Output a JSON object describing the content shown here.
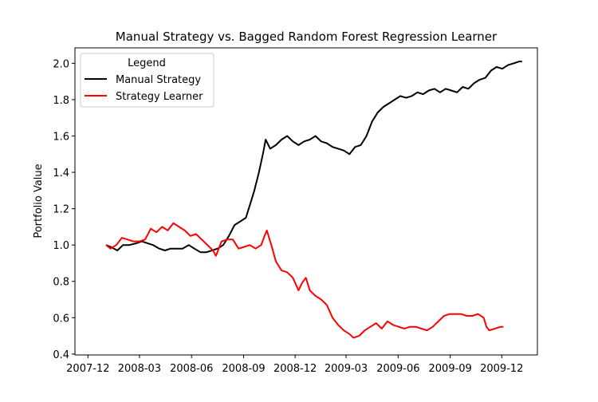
{
  "chart_data": {
    "type": "line",
    "title": "Manual Strategy vs. Bagged Random Forest Regression Learner",
    "xlabel": "",
    "ylabel": "Portfolio Value",
    "xlim": [
      "2007-11-08",
      "2010-02-02"
    ],
    "ylim": [
      0.395,
      2.085
    ],
    "x_ticks": [
      "2007-12",
      "2008-03",
      "2008-06",
      "2008-09",
      "2008-12",
      "2009-03",
      "2009-06",
      "2009-09",
      "2009-12"
    ],
    "y_ticks": [
      "0.4",
      "0.6",
      "0.8",
      "1.0",
      "1.2",
      "1.4",
      "1.6",
      "1.8",
      "2.0"
    ],
    "grid": false,
    "legend": {
      "title": "Legend",
      "position": "top-left"
    },
    "series": [
      {
        "name": "Manual Strategy",
        "color": "#000000",
        "points": [
          [
            "2008-01-02",
            1.0
          ],
          [
            "2008-01-10",
            0.99
          ],
          [
            "2008-01-22",
            0.97
          ],
          [
            "2008-02-01",
            1.0
          ],
          [
            "2008-02-12",
            1.0
          ],
          [
            "2008-02-25",
            1.01
          ],
          [
            "2008-03-05",
            1.02
          ],
          [
            "2008-03-15",
            1.01
          ],
          [
            "2008-03-25",
            1.0
          ],
          [
            "2008-04-05",
            0.98
          ],
          [
            "2008-04-15",
            0.97
          ],
          [
            "2008-04-25",
            0.98
          ],
          [
            "2008-05-06",
            0.98
          ],
          [
            "2008-05-16",
            0.98
          ],
          [
            "2008-05-27",
            1.0
          ],
          [
            "2008-06-06",
            0.98
          ],
          [
            "2008-06-17",
            0.96
          ],
          [
            "2008-06-27",
            0.96
          ],
          [
            "2008-07-07",
            0.97
          ],
          [
            "2008-07-17",
            0.98
          ],
          [
            "2008-07-27",
            1.0
          ],
          [
            "2008-08-06",
            1.05
          ],
          [
            "2008-08-16",
            1.11
          ],
          [
            "2008-08-26",
            1.13
          ],
          [
            "2008-09-05",
            1.15
          ],
          [
            "2008-09-12",
            1.22
          ],
          [
            "2008-09-20",
            1.3
          ],
          [
            "2008-09-28",
            1.4
          ],
          [
            "2008-10-05",
            1.5
          ],
          [
            "2008-10-10",
            1.58
          ],
          [
            "2008-10-18",
            1.53
          ],
          [
            "2008-10-28",
            1.55
          ],
          [
            "2008-11-07",
            1.58
          ],
          [
            "2008-11-17",
            1.6
          ],
          [
            "2008-11-27",
            1.57
          ],
          [
            "2008-12-07",
            1.55
          ],
          [
            "2008-12-17",
            1.57
          ],
          [
            "2008-12-27",
            1.58
          ],
          [
            "2009-01-06",
            1.6
          ],
          [
            "2009-01-16",
            1.57
          ],
          [
            "2009-01-26",
            1.56
          ],
          [
            "2009-02-05",
            1.54
          ],
          [
            "2009-02-15",
            1.53
          ],
          [
            "2009-02-25",
            1.52
          ],
          [
            "2009-03-07",
            1.5
          ],
          [
            "2009-03-17",
            1.54
          ],
          [
            "2009-03-27",
            1.55
          ],
          [
            "2009-04-06",
            1.6
          ],
          [
            "2009-04-16",
            1.68
          ],
          [
            "2009-04-26",
            1.73
          ],
          [
            "2009-05-06",
            1.76
          ],
          [
            "2009-05-16",
            1.78
          ],
          [
            "2009-05-26",
            1.8
          ],
          [
            "2009-06-05",
            1.82
          ],
          [
            "2009-06-15",
            1.81
          ],
          [
            "2009-06-25",
            1.82
          ],
          [
            "2009-07-05",
            1.84
          ],
          [
            "2009-07-15",
            1.83
          ],
          [
            "2009-07-25",
            1.85
          ],
          [
            "2009-08-04",
            1.86
          ],
          [
            "2009-08-14",
            1.84
          ],
          [
            "2009-08-24",
            1.86
          ],
          [
            "2009-09-03",
            1.85
          ],
          [
            "2009-09-13",
            1.84
          ],
          [
            "2009-09-23",
            1.87
          ],
          [
            "2009-10-03",
            1.86
          ],
          [
            "2009-10-13",
            1.89
          ],
          [
            "2009-10-23",
            1.91
          ],
          [
            "2009-11-02",
            1.92
          ],
          [
            "2009-11-12",
            1.96
          ],
          [
            "2009-11-22",
            1.98
          ],
          [
            "2009-12-02",
            1.97
          ],
          [
            "2009-12-12",
            1.99
          ],
          [
            "2009-12-22",
            2.0
          ],
          [
            "2010-01-01",
            2.01
          ],
          [
            "2010-01-06",
            2.01
          ]
        ]
      },
      {
        "name": "Strategy Learner",
        "color": "#ff0000",
        "points": [
          [
            "2008-01-02",
            1.0
          ],
          [
            "2008-01-10",
            0.98
          ],
          [
            "2008-01-20",
            1.0
          ],
          [
            "2008-01-30",
            1.04
          ],
          [
            "2008-02-09",
            1.03
          ],
          [
            "2008-02-19",
            1.02
          ],
          [
            "2008-03-01",
            1.02
          ],
          [
            "2008-03-11",
            1.03
          ],
          [
            "2008-03-21",
            1.09
          ],
          [
            "2008-03-31",
            1.07
          ],
          [
            "2008-04-10",
            1.1
          ],
          [
            "2008-04-20",
            1.08
          ],
          [
            "2008-04-30",
            1.12
          ],
          [
            "2008-05-10",
            1.1
          ],
          [
            "2008-05-20",
            1.08
          ],
          [
            "2008-05-30",
            1.05
          ],
          [
            "2008-06-09",
            1.06
          ],
          [
            "2008-06-19",
            1.03
          ],
          [
            "2008-06-29",
            1.0
          ],
          [
            "2008-07-09",
            0.97
          ],
          [
            "2008-07-14",
            0.94
          ],
          [
            "2008-07-24",
            1.02
          ],
          [
            "2008-08-03",
            1.03
          ],
          [
            "2008-08-13",
            1.03
          ],
          [
            "2008-08-23",
            0.98
          ],
          [
            "2008-09-02",
            0.99
          ],
          [
            "2008-09-12",
            1.0
          ],
          [
            "2008-09-22",
            0.98
          ],
          [
            "2008-10-02",
            1.0
          ],
          [
            "2008-10-08",
            1.05
          ],
          [
            "2008-10-12",
            1.08
          ],
          [
            "2008-10-20",
            1.0
          ],
          [
            "2008-10-28",
            0.91
          ],
          [
            "2008-11-07",
            0.86
          ],
          [
            "2008-11-17",
            0.85
          ],
          [
            "2008-11-27",
            0.82
          ],
          [
            "2008-12-07",
            0.75
          ],
          [
            "2008-12-13",
            0.79
          ],
          [
            "2008-12-20",
            0.82
          ],
          [
            "2008-12-27",
            0.75
          ],
          [
            "2009-01-06",
            0.72
          ],
          [
            "2009-01-16",
            0.7
          ],
          [
            "2009-01-26",
            0.67
          ],
          [
            "2009-02-05",
            0.6
          ],
          [
            "2009-02-15",
            0.56
          ],
          [
            "2009-02-25",
            0.53
          ],
          [
            "2009-03-07",
            0.51
          ],
          [
            "2009-03-14",
            0.49
          ],
          [
            "2009-03-24",
            0.5
          ],
          [
            "2009-04-03",
            0.53
          ],
          [
            "2009-04-13",
            0.55
          ],
          [
            "2009-04-23",
            0.57
          ],
          [
            "2009-05-03",
            0.54
          ],
          [
            "2009-05-13",
            0.58
          ],
          [
            "2009-05-23",
            0.56
          ],
          [
            "2009-06-02",
            0.55
          ],
          [
            "2009-06-12",
            0.54
          ],
          [
            "2009-06-22",
            0.55
          ],
          [
            "2009-07-02",
            0.55
          ],
          [
            "2009-07-12",
            0.54
          ],
          [
            "2009-07-22",
            0.53
          ],
          [
            "2009-08-01",
            0.55
          ],
          [
            "2009-08-11",
            0.58
          ],
          [
            "2009-08-21",
            0.61
          ],
          [
            "2009-08-31",
            0.62
          ],
          [
            "2009-09-10",
            0.62
          ],
          [
            "2009-09-20",
            0.62
          ],
          [
            "2009-09-30",
            0.61
          ],
          [
            "2009-10-10",
            0.61
          ],
          [
            "2009-10-20",
            0.62
          ],
          [
            "2009-10-30",
            0.6
          ],
          [
            "2009-11-04",
            0.55
          ],
          [
            "2009-11-09",
            0.53
          ],
          [
            "2009-11-19",
            0.54
          ],
          [
            "2009-11-29",
            0.55
          ],
          [
            "2009-12-04",
            0.55
          ]
        ]
      }
    ]
  }
}
